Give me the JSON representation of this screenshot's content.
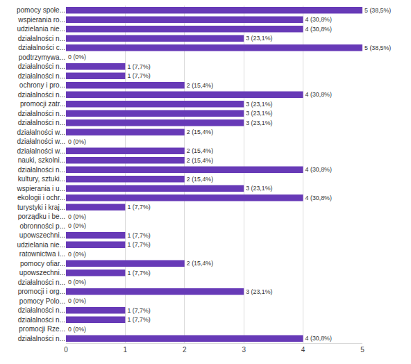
{
  "chart_data": {
    "type": "bar",
    "orientation": "horizontal",
    "categories": [
      "pomocy społe...",
      "wspierania ro...",
      "udzielania nie...",
      "działalności n...",
      "działalności c...",
      "podtrzymywa...",
      "działalności n...",
      "działalności n...",
      "ochrony i pro...",
      "działalności n...",
      "promocji zatr...",
      "działalności n...",
      "działalności n...",
      "działalności w...",
      "działalności w...",
      "działalności w...",
      "nauki, szkolni...",
      "działalności n...",
      "kultury, sztuki...",
      "wspierania i u...",
      "ekologii i ochr...",
      "turystyki i kraj...",
      "porządku i be...",
      "obronności p...",
      "upowszechni...",
      "udzielania nie...",
      "ratownictwa i...",
      "pomocy ofiar...",
      "upowszechni...",
      "działalności n...",
      "promocji i org...",
      "pomocy Polo...",
      "działalności n...",
      "działalności n...",
      "promocji Rze...",
      "działalności n..."
    ],
    "values": [
      5,
      4,
      4,
      3,
      5,
      0,
      1,
      1,
      2,
      4,
      3,
      3,
      3,
      2,
      0,
      2,
      2,
      4,
      2,
      3,
      4,
      1,
      0,
      0,
      1,
      1,
      0,
      2,
      1,
      0,
      3,
      0,
      1,
      1,
      0,
      4
    ],
    "value_labels": [
      "5 (38,5%)",
      "4 (30,8%)",
      "4 (30,8%)",
      "3 (23,1%)",
      "5 (38,5%)",
      "0 (0%)",
      "1 (7,7%)",
      "1 (7,7%)",
      "2 (15,4%)",
      "4 (30,8%)",
      "3 (23,1%)",
      "3 (23,1%)",
      "3 (23,1%)",
      "2 (15,4%)",
      "0 (0%)",
      "2 (15,4%)",
      "2 (15,4%)",
      "4 (30,8%)",
      "2 (15,4%)",
      "3 (23,1%)",
      "4 (30,8%)",
      "1 (7,7%)",
      "0 (0%)",
      "0 (0%)",
      "1 (7,7%)",
      "1 (7,7%)",
      "0 (0%)",
      "2 (15,4%)",
      "1 (7,7%)",
      "0 (0%)",
      "3 (23,1%)",
      "0 (0%)",
      "1 (7,7%)",
      "1 (7,7%)",
      "0 (0%)",
      "4 (30,8%)"
    ],
    "data_labels": true,
    "color": "#673ab7",
    "xlim": [
      0,
      5
    ],
    "xticks": [
      0,
      1,
      2,
      3,
      4,
      5
    ],
    "grid": true
  }
}
